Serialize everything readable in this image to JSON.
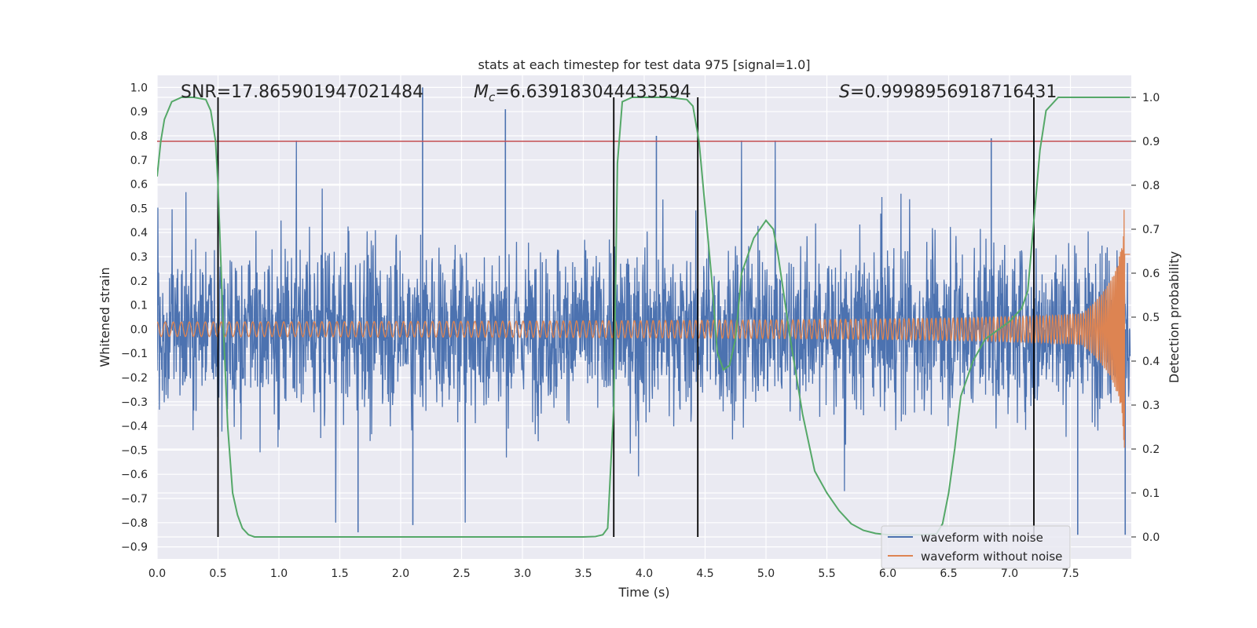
{
  "chart_data": {
    "type": "line",
    "title": "stats at each timestep for test data 975 [signal=1.0]",
    "xlabel": "Time (s)",
    "ylabel_left": "Whitened strain",
    "ylabel_right": "Detection probability",
    "xlim": [
      0.0,
      8.0
    ],
    "ylim_left": [
      -0.95,
      1.05
    ],
    "ylim_right": [
      -0.05,
      1.05
    ],
    "xticks": [
      "0.0",
      "0.5",
      "1.0",
      "1.5",
      "2.0",
      "2.5",
      "3.0",
      "3.5",
      "4.0",
      "4.5",
      "5.0",
      "5.5",
      "6.0",
      "6.5",
      "7.0",
      "7.5"
    ],
    "yticks_left": [
      "-0.9",
      "-0.8",
      "-0.7",
      "-0.6",
      "-0.5",
      "-0.4",
      "-0.3",
      "-0.2",
      "-0.1",
      "0.0",
      "0.1",
      "0.2",
      "0.3",
      "0.4",
      "0.5",
      "0.6",
      "0.7",
      "0.8",
      "0.9",
      "1.0"
    ],
    "yticks_right": [
      "0.0",
      "0.1",
      "0.2",
      "0.3",
      "0.4",
      "0.5",
      "0.6",
      "0.7",
      "0.8",
      "0.9",
      "1.0"
    ],
    "annotations": {
      "snr": "SNR=17.865901947021484",
      "mc_symbol": "M",
      "mc_sub": "c",
      "mc_value": "=6.639183044433594",
      "s_symbol": "S",
      "s_value": "=0.9998956918716431"
    },
    "threshold": 0.9,
    "vertical_markers": [
      0.5,
      3.75,
      4.44,
      7.2
    ],
    "series": [
      {
        "name": "waveform with noise",
        "color": "#4c72b0",
        "axis": "left",
        "kind": "noise",
        "amplitude_range": [
          -0.85,
          1.0
        ],
        "spikes": [
          [
            2.18,
            1.0
          ],
          [
            2.86,
            0.91
          ],
          [
            0.5,
            0.8
          ],
          [
            3.75,
            0.75
          ],
          [
            4.1,
            0.8
          ],
          [
            6.85,
            0.79
          ],
          [
            7.2,
            0.8
          ],
          [
            1.65,
            -0.84
          ],
          [
            2.1,
            -0.81
          ],
          [
            7.56,
            -0.85
          ],
          [
            7.95,
            -0.85
          ]
        ]
      },
      {
        "name": "waveform without noise",
        "color": "#dd8452",
        "axis": "left",
        "kind": "chirp",
        "t_start": 0.0,
        "t_merger": 7.95,
        "amplitude_start": 0.03,
        "amplitude_peak": 0.5
      },
      {
        "name": "detection probability",
        "color": "#55a868",
        "axis": "right",
        "x": [
          0.0,
          0.03,
          0.06,
          0.12,
          0.2,
          0.3,
          0.4,
          0.44,
          0.48,
          0.5,
          0.54,
          0.58,
          0.62,
          0.66,
          0.7,
          0.75,
          0.8,
          0.9,
          1.0,
          1.5,
          2.0,
          2.5,
          3.0,
          3.5,
          3.6,
          3.66,
          3.7,
          3.75,
          3.78,
          3.82,
          3.9,
          4.0,
          4.2,
          4.35,
          4.4,
          4.45,
          4.5,
          4.55,
          4.6,
          4.65,
          4.7,
          4.75,
          4.8,
          4.9,
          5.0,
          5.06,
          5.1,
          5.2,
          5.3,
          5.4,
          5.5,
          5.6,
          5.7,
          5.8,
          5.9,
          6.0,
          6.1,
          6.2,
          6.3,
          6.4,
          6.45,
          6.5,
          6.55,
          6.6,
          6.7,
          6.8,
          6.9,
          7.0,
          7.1,
          7.15,
          7.2,
          7.25,
          7.3,
          7.4,
          7.5,
          7.6,
          7.7,
          7.8,
          7.9,
          7.99
        ],
        "values": [
          0.82,
          0.9,
          0.95,
          0.99,
          1.0,
          1.0,
          0.995,
          0.97,
          0.9,
          0.8,
          0.5,
          0.25,
          0.1,
          0.05,
          0.02,
          0.005,
          0.0,
          0.0,
          0.0,
          0.0,
          0.0,
          0.0,
          0.0,
          0.0,
          0.001,
          0.005,
          0.02,
          0.3,
          0.85,
          0.99,
          1.0,
          1.0,
          1.0,
          0.995,
          0.98,
          0.9,
          0.75,
          0.6,
          0.42,
          0.38,
          0.39,
          0.45,
          0.6,
          0.68,
          0.72,
          0.7,
          0.64,
          0.45,
          0.28,
          0.15,
          0.1,
          0.06,
          0.03,
          0.015,
          0.008,
          0.005,
          0.005,
          0.005,
          0.005,
          0.007,
          0.03,
          0.1,
          0.2,
          0.32,
          0.4,
          0.45,
          0.47,
          0.49,
          0.52,
          0.56,
          0.72,
          0.88,
          0.97,
          1.0,
          1.0,
          1.0,
          1.0,
          1.0,
          1.0,
          1.0
        ]
      }
    ],
    "threshold_color": "#c44e52",
    "marker_color": "#000000",
    "legend": {
      "placement": "lower-right",
      "entries": [
        {
          "label": "waveform with noise",
          "color": "#4c72b0"
        },
        {
          "label": "waveform without noise",
          "color": "#dd8452"
        }
      ]
    },
    "plot_background": "#eaeaf2",
    "grid_color": "#ffffff"
  }
}
